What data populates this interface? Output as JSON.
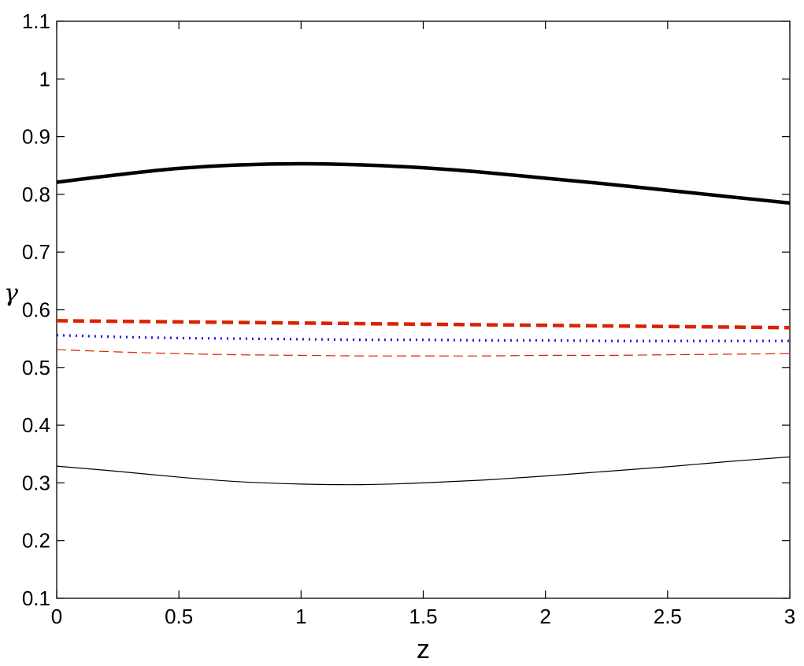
{
  "chart_data": {
    "type": "line",
    "xlabel": "z",
    "ylabel": "γ",
    "xlim": [
      0,
      3
    ],
    "ylim": [
      0.1,
      1.1
    ],
    "grid": false,
    "x_ticks": [
      "0",
      "0.5",
      "1",
      "1.5",
      "2",
      "2.5",
      "3"
    ],
    "y_ticks": [
      "0.1",
      "0.2",
      "0.3",
      "0.4",
      "0.5",
      "0.6",
      "0.7",
      "0.8",
      "0.9",
      "1",
      "1.1"
    ],
    "x": [
      0,
      0.25,
      0.5,
      0.75,
      1.0,
      1.25,
      1.5,
      1.75,
      2.0,
      2.25,
      2.5,
      2.75,
      3.0
    ],
    "series": [
      {
        "color": "#000000",
        "style": "solid",
        "width": "thick",
        "values": [
          0.821,
          0.834,
          0.845,
          0.851,
          0.853,
          0.851,
          0.846,
          0.838,
          0.828,
          0.818,
          0.807,
          0.796,
          0.785
        ]
      },
      {
        "color": "#dd2200",
        "style": "dashed",
        "width": "thick",
        "values": [
          0.581,
          0.58,
          0.579,
          0.578,
          0.577,
          0.576,
          0.575,
          0.574,
          0.573,
          0.572,
          0.571,
          0.57,
          0.569
        ]
      },
      {
        "color": "#1a1aee",
        "style": "dotted",
        "width": "medium",
        "values": [
          0.556,
          0.553,
          0.551,
          0.55,
          0.549,
          0.548,
          0.548,
          0.547,
          0.547,
          0.546,
          0.546,
          0.546,
          0.546
        ]
      },
      {
        "color": "#dd2200",
        "style": "dashed",
        "width": "thin",
        "values": [
          0.531,
          0.527,
          0.524,
          0.522,
          0.521,
          0.52,
          0.52,
          0.52,
          0.521,
          0.521,
          0.522,
          0.523,
          0.524
        ]
      },
      {
        "color": "#000000",
        "style": "solid",
        "width": "thin",
        "values": [
          0.329,
          0.32,
          0.31,
          0.302,
          0.298,
          0.297,
          0.3,
          0.305,
          0.312,
          0.32,
          0.328,
          0.337,
          0.345
        ]
      }
    ]
  }
}
